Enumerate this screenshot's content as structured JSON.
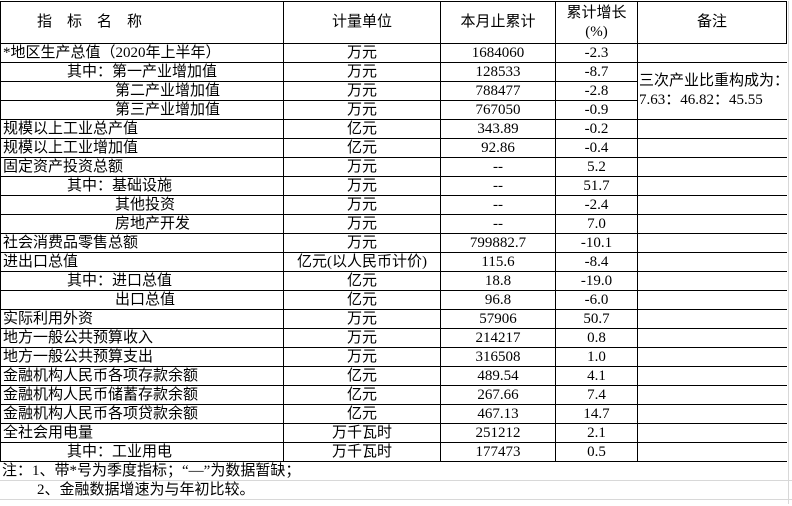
{
  "table": {
    "headers": {
      "indicator": "指　标　名　称",
      "unit": "计量单位",
      "cumulative": "本月止累计",
      "growth_line1": "累计增长",
      "growth_line2": "(%)",
      "remark": "备注"
    },
    "remark_note": {
      "line1": "三次产业比重构成为：",
      "line2": "7.63：46.82：45.55"
    },
    "rows": [
      {
        "name": "*地区生产总值（2020年上半年）",
        "indent": 0,
        "unit": "万元",
        "value": "1684060",
        "growth": "-2.3"
      },
      {
        "name": "其中：第一产业增加值",
        "indent": 1,
        "unit": "万元",
        "value": "128533",
        "growth": "-8.7"
      },
      {
        "name": "第二产业增加值",
        "indent": 2,
        "unit": "万元",
        "value": "788477",
        "growth": "-2.8"
      },
      {
        "name": "第三产业增加值",
        "indent": 2,
        "unit": "万元",
        "value": "767050",
        "growth": "-0.9"
      },
      {
        "name": "规模以上工业总产值",
        "indent": 0,
        "unit": "亿元",
        "value": "343.89",
        "growth": "-0.2"
      },
      {
        "name": "规模以上工业增加值",
        "indent": 0,
        "unit": "亿元",
        "value": "92.86",
        "growth": "-0.4"
      },
      {
        "name": "固定资产投资总额",
        "indent": 0,
        "unit": "万元",
        "value": "--",
        "growth": "5.2"
      },
      {
        "name": "其中：基础设施",
        "indent": 1,
        "unit": "万元",
        "value": "--",
        "growth": "51.7"
      },
      {
        "name": "其他投资",
        "indent": 2,
        "unit": "万元",
        "value": "--",
        "growth": "-2.4"
      },
      {
        "name": "房地产开发",
        "indent": 2,
        "unit": "万元",
        "value": "--",
        "growth": "7.0"
      },
      {
        "name": "社会消费品零售总额",
        "indent": 0,
        "unit": "万元",
        "value": "799882.7",
        "growth": "-10.1"
      },
      {
        "name": "进出口总值",
        "indent": 0,
        "unit": "亿元(以人民币计价)",
        "value": "115.6",
        "growth": "-8.4"
      },
      {
        "name": "其中：进口总值",
        "indent": 1,
        "unit": "亿元",
        "value": "18.8",
        "growth": "-19.0"
      },
      {
        "name": "出口总值",
        "indent": 2,
        "unit": "亿元",
        "value": "96.8",
        "growth": "-6.0"
      },
      {
        "name": "实际利用外资",
        "indent": 0,
        "unit": "万元",
        "value": "57906",
        "growth": "50.7"
      },
      {
        "name": "地方一般公共预算收入",
        "indent": 0,
        "unit": "万元",
        "value": "214217",
        "growth": "0.8"
      },
      {
        "name": "地方一般公共预算支出",
        "indent": 0,
        "unit": "万元",
        "value": "316508",
        "growth": "1.0"
      },
      {
        "name": "金融机构人民币各项存款余额",
        "indent": 0,
        "unit": "亿元",
        "value": "489.54",
        "growth": "4.1"
      },
      {
        "name": "金融机构人民币储蓄存款余额",
        "indent": 0,
        "unit": "亿元",
        "value": "267.66",
        "growth": "7.4"
      },
      {
        "name": "金融机构人民币各项贷款余额",
        "indent": 0,
        "unit": "亿元",
        "value": "467.13",
        "growth": "14.7"
      },
      {
        "name": "全社会用电量",
        "indent": 0,
        "unit": "万千瓦时",
        "value": "251212",
        "growth": "2.1"
      },
      {
        "name": "其中：工业用电",
        "indent": 1,
        "unit": "万千瓦时",
        "value": "177473",
        "growth": "0.5"
      }
    ]
  },
  "footnotes": {
    "line1": "注：1、带*号为季度指标；“—”为数据暂缺；",
    "line2": "2、金融数据增速为与年初比较。"
  },
  "colors": {
    "border": "#000000",
    "gridline": "#d8d8d8",
    "text": "#000000",
    "background": "#ffffff"
  }
}
